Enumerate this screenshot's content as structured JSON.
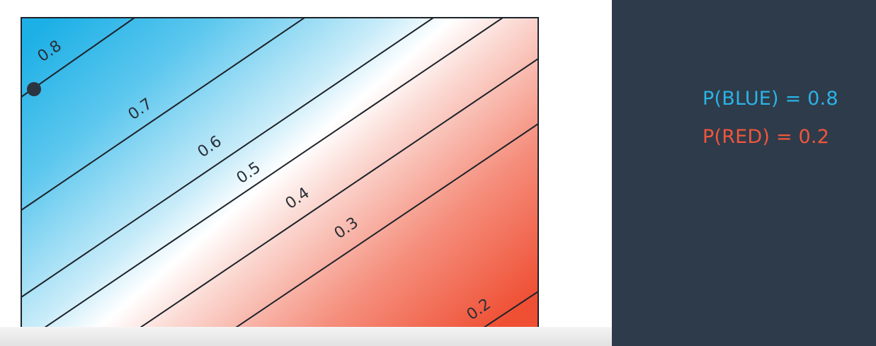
{
  "contour_labels": [
    "0.8",
    "0.7",
    "0.6",
    "0.5",
    "0.4",
    "0.3",
    "0.2"
  ],
  "probabilities": {
    "blue": "P(BLUE) = 0.8",
    "red": "P(RED) = 0.2"
  },
  "colors": {
    "blue": "#2bb3e6",
    "red": "#f0563c",
    "panel": "#2e3b4a",
    "lines": "#1e232a",
    "point": "#2b3440"
  }
}
